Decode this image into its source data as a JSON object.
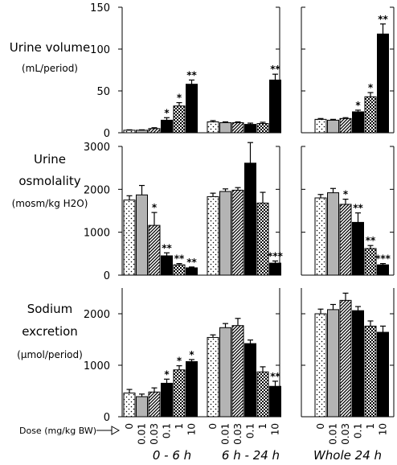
{
  "chart_data": {
    "type": "bar",
    "dose_label": "Dose (mg/kg BW)",
    "doses": [
      "0",
      "0.01",
      "0.03",
      "0.1",
      "1",
      "10"
    ],
    "periods": [
      "0 - 6 h",
      "6 h - 24 h",
      "Whole 24 h"
    ],
    "patterns": [
      "dots",
      "gray",
      "diagonal",
      "black",
      "checker",
      "black"
    ],
    "panels": [
      {
        "row_label": [
          "Urine volume",
          "(mL/period)"
        ],
        "ylim": [
          0,
          150
        ],
        "ticks": [
          0,
          50,
          100,
          150
        ],
        "groups": [
          {
            "values": [
              3,
              3,
              5,
              15,
              32,
              58
            ],
            "errors": [
              0.5,
              0.5,
              1,
              3,
              4,
              5
            ],
            "stars": [
              "",
              "",
              "",
              "*",
              "*",
              "**"
            ]
          },
          {
            "values": [
              13,
              12,
              12,
              10,
              11,
              63
            ],
            "errors": [
              1.5,
              1,
              1,
              1.5,
              1.5,
              7
            ],
            "stars": [
              "",
              "",
              "",
              "",
              "",
              "**"
            ]
          },
          {
            "values": [
              16,
              15,
              17,
              25,
              43,
              118
            ],
            "errors": [
              1,
              1,
              1,
              2,
              5,
              12
            ],
            "stars": [
              "",
              "",
              "",
              "*",
              "*",
              "**"
            ]
          }
        ]
      },
      {
        "row_label": [
          "Urine",
          "osmolality",
          "(mosm/kg H2O)"
        ],
        "ylim": [
          0,
          3000
        ],
        "ticks": [
          0,
          1000,
          2000,
          3000
        ],
        "groups": [
          {
            "values": [
              1750,
              1870,
              1160,
              450,
              240,
              170
            ],
            "errors": [
              100,
              220,
              300,
              70,
              30,
              20
            ],
            "stars": [
              "",
              "",
              "*",
              "**",
              "**",
              "**"
            ]
          },
          {
            "values": [
              1830,
              1950,
              1980,
              2610,
              1680,
              280
            ],
            "errors": [
              80,
              60,
              60,
              480,
              250,
              50
            ],
            "stars": [
              "",
              "",
              "",
              "",
              "",
              "***"
            ]
          },
          {
            "values": [
              1800,
              1920,
              1650,
              1230,
              620,
              240
            ],
            "errors": [
              80,
              100,
              120,
              220,
              70,
              30
            ],
            "stars": [
              "",
              "",
              "*",
              "**",
              "**",
              "***"
            ]
          }
        ]
      },
      {
        "row_label": [
          "Sodium",
          "excretion",
          "(µmol/period)"
        ],
        "ylim": [
          0,
          2500
        ],
        "ticks": [
          0,
          1000,
          2000
        ],
        "groups": [
          {
            "values": [
              460,
              390,
              480,
              650,
              910,
              1070
            ],
            "errors": [
              70,
              50,
              80,
              80,
              80,
              40
            ],
            "stars": [
              "",
              "",
              "",
              "*",
              "*",
              "*"
            ]
          },
          {
            "values": [
              1540,
              1730,
              1770,
              1420,
              870,
              590
            ],
            "errors": [
              50,
              80,
              140,
              70,
              100,
              100
            ],
            "stars": [
              "",
              "",
              "",
              "",
              "",
              "**"
            ]
          },
          {
            "values": [
              2000,
              2080,
              2260,
              2060,
              1760,
              1640
            ],
            "errors": [
              90,
              100,
              140,
              80,
              100,
              120
            ],
            "stars": [
              "",
              "",
              "",
              "",
              "",
              ""
            ]
          }
        ]
      }
    ]
  }
}
